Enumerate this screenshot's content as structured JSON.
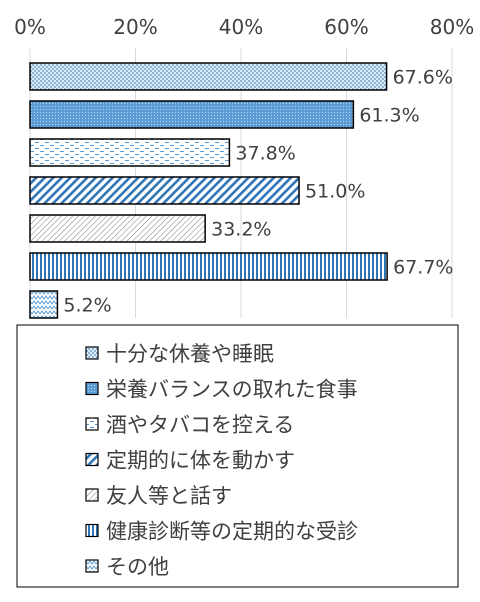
{
  "chart_data": {
    "type": "bar",
    "orientation": "horizontal",
    "categories": [
      "十分な休養や睡眠",
      "栄養バランスの取れた食事",
      "酒やタバコを控える",
      "定期的に体を動かす",
      "友人等と話す",
      "健康診断等の定期的な受診",
      "その他"
    ],
    "values": [
      67.6,
      61.3,
      37.8,
      51.0,
      33.2,
      67.7,
      5.2
    ],
    "value_labels": [
      "67.6%",
      "61.3%",
      "37.8%",
      "51.0%",
      "33.2%",
      "67.7%",
      "5.2%"
    ],
    "x_ticks": [
      "0%",
      "20%",
      "40%",
      "60%",
      "80%"
    ],
    "xlim": [
      0,
      80
    ],
    "x_axis_position": "top",
    "grid": true,
    "legend_position": "bottom",
    "title": "",
    "xlabel": "",
    "ylabel": "",
    "colors": {
      "accent": "#5B9BD5",
      "dark_blue": "#2E75B6",
      "outline": "#000000",
      "grid": "#D9D9D9",
      "text": "#404040"
    },
    "patterns": [
      "dots",
      "dense-dots",
      "dashes",
      "wide-diagonal",
      "thin-diagonal",
      "vertical-stripes",
      "zigzag"
    ]
  }
}
